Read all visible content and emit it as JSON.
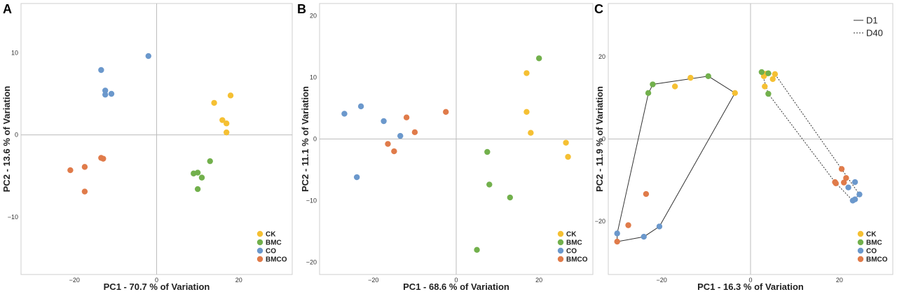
{
  "colors": {
    "CK": "#f5c033",
    "BMC": "#72b04c",
    "CO": "#6b98cc",
    "BMCO": "#e07b4a"
  },
  "chart_data": [
    {
      "type": "scatter",
      "panel_label": "A",
      "xlabel": "PC1 - 70.7 % of Variation",
      "ylabel": "PC2 - 13.6 % of Variation",
      "xlim": [
        -33,
        33
      ],
      "ylim": [
        -17,
        16
      ],
      "xticks": [
        -20,
        0,
        20
      ],
      "yticks": [
        -10,
        0,
        10
      ],
      "legend": [
        "CK",
        "BMC",
        "CO",
        "BMCO"
      ],
      "series": [
        {
          "name": "CK",
          "points": [
            [
              18,
              4.8
            ],
            [
              14,
              3.9
            ],
            [
              16,
              1.8
            ],
            [
              17,
              1.4
            ],
            [
              17,
              0.3
            ]
          ]
        },
        {
          "name": "BMC",
          "points": [
            [
              13,
              -3.2
            ],
            [
              9,
              -4.7
            ],
            [
              10,
              -4.6
            ],
            [
              11,
              -5.2
            ],
            [
              10,
              -6.6
            ]
          ]
        },
        {
          "name": "CO",
          "points": [
            [
              -2,
              9.6
            ],
            [
              -13.5,
              7.9
            ],
            [
              -12.5,
              5.4
            ],
            [
              -11,
              5.0
            ],
            [
              -12.5,
              4.9
            ]
          ]
        },
        {
          "name": "BMCO",
          "points": [
            [
              -13,
              -2.9
            ],
            [
              -13.5,
              -2.8
            ],
            [
              -17.5,
              -3.9
            ],
            [
              -21,
              -4.3
            ],
            [
              -17.5,
              -6.9
            ]
          ]
        }
      ]
    },
    {
      "type": "scatter",
      "panel_label": "B",
      "xlabel": "PC1 - 68.6 % of Variation",
      "ylabel": "PC2 - 11.1 % of Variation",
      "xlim": [
        -33,
        33
      ],
      "ylim": [
        -22,
        22
      ],
      "xticks": [
        -20,
        0,
        20
      ],
      "yticks": [
        -20,
        -10,
        0,
        10,
        20
      ],
      "legend": [
        "CK",
        "BMC",
        "CO",
        "BMCO"
      ],
      "series": [
        {
          "name": "CK",
          "points": [
            [
              17,
              10.7
            ],
            [
              17,
              4.4
            ],
            [
              18,
              1.0
            ],
            [
              26.5,
              -0.6
            ],
            [
              27,
              -2.9
            ]
          ]
        },
        {
          "name": "BMC",
          "points": [
            [
              20,
              13.1
            ],
            [
              7.5,
              -2.1
            ],
            [
              8,
              -7.4
            ],
            [
              13,
              -9.5
            ],
            [
              5,
              -18.0
            ]
          ]
        },
        {
          "name": "CO",
          "points": [
            [
              -23,
              5.3
            ],
            [
              -27,
              4.1
            ],
            [
              -17.5,
              2.9
            ],
            [
              -13.5,
              0.5
            ],
            [
              -24,
              -6.2
            ]
          ]
        },
        {
          "name": "BMCO",
          "points": [
            [
              -2.5,
              4.4
            ],
            [
              -12,
              3.5
            ],
            [
              -10,
              1.1
            ],
            [
              -16.5,
              -0.8
            ],
            [
              -15,
              -2.0
            ]
          ]
        }
      ]
    },
    {
      "type": "scatter",
      "panel_label": "C",
      "xlabel": "PC1 - 16.3 % of Variation",
      "ylabel": "PC2 - 11.9 % of Variation",
      "xlim": [
        -32,
        32
      ],
      "ylim": [
        -33,
        33
      ],
      "xticks": [
        -20,
        0,
        20
      ],
      "yticks": [
        -20,
        0,
        20
      ],
      "legend": [
        "CK",
        "BMC",
        "CO",
        "BMCO"
      ],
      "line_legend": [
        {
          "name": "D1",
          "style": "solid"
        },
        {
          "name": "D40",
          "style": "dotted"
        }
      ],
      "hulls": [
        {
          "name": "D1",
          "style": "solid",
          "points": [
            [
              -30,
              -25
            ],
            [
              -30,
              -23
            ],
            [
              -23,
              11
            ],
            [
              -22,
              13.3
            ],
            [
              -9.5,
              15.3
            ],
            [
              -3.5,
              11.2
            ],
            [
              -20.5,
              -21.3
            ],
            [
              -24,
              -23.8
            ]
          ]
        },
        {
          "name": "D40",
          "style": "dotted",
          "points": [
            [
              2.5,
              16.3
            ],
            [
              5.5,
              15.8
            ],
            [
              24.5,
              -13.5
            ],
            [
              23,
              -15
            ],
            [
              19,
              -10.5
            ],
            [
              4,
              11
            ]
          ]
        }
      ],
      "series": [
        {
          "name": "CK",
          "points": [
            [
              -17,
              12.8
            ],
            [
              -13.5,
              14.9
            ],
            [
              -3.5,
              11.2
            ],
            [
              3,
              15.3
            ],
            [
              3.5,
              15.9
            ],
            [
              5,
              14.6
            ],
            [
              5.5,
              15.8
            ],
            [
              3.2,
              12.8
            ]
          ]
        },
        {
          "name": "BMC",
          "points": [
            [
              -23,
              11.2
            ],
            [
              -22,
              13.3
            ],
            [
              -9.5,
              15.3
            ],
            [
              2.5,
              16.3
            ],
            [
              4,
              16.0
            ],
            [
              4,
              11.0
            ]
          ]
        },
        {
          "name": "CO",
          "points": [
            [
              -30,
              -23.0
            ],
            [
              -24,
              -23.8
            ],
            [
              -20.5,
              -21.3
            ],
            [
              23.5,
              -10.5
            ],
            [
              22,
              -11.8
            ],
            [
              24.5,
              -13.5
            ],
            [
              23,
              -15.0
            ],
            [
              23.5,
              -14.7
            ]
          ]
        },
        {
          "name": "BMCO",
          "points": [
            [
              -30,
              -25.0
            ],
            [
              -27.5,
              -21.0
            ],
            [
              -23.5,
              -13.4
            ],
            [
              20.5,
              -7.3
            ],
            [
              21,
              -10.6
            ],
            [
              21.5,
              -9.5
            ],
            [
              19,
              -10.5
            ],
            [
              19.2,
              -10.8
            ]
          ]
        }
      ]
    }
  ]
}
